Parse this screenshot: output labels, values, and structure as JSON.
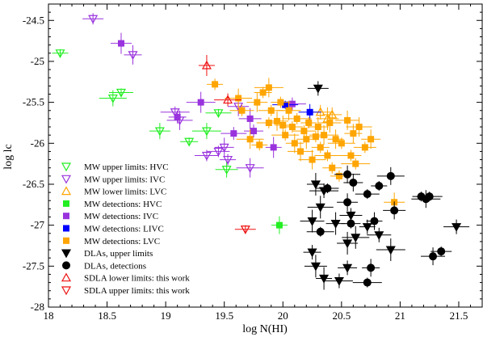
{
  "chart_data": {
    "type": "scatter",
    "xlabel": "log N(HI)",
    "ylabel": "log lc",
    "xlim": [
      18,
      21.7
    ],
    "ylim": [
      -28,
      -24.3
    ],
    "x_ticks": [
      "18",
      "18.5",
      "19",
      "19.5",
      "20",
      "20.5",
      "21",
      "21.5"
    ],
    "y_ticks": [
      "-24.5",
      "-25",
      "-25.5",
      "-26",
      "-26.5",
      "-27",
      "-27.5",
      "-28"
    ],
    "grid": false,
    "legend_position": "bottom-left",
    "series": [
      {
        "name": "MW upper limits: HVC",
        "marker": "triangle-down-open",
        "color": "#22ee22",
        "points": [
          [
            18.1,
            -24.9
          ],
          [
            18.55,
            -25.45
          ],
          [
            18.62,
            -25.38
          ],
          [
            18.95,
            -25.85
          ],
          [
            19.2,
            -25.98
          ],
          [
            19.35,
            -25.85
          ],
          [
            19.45,
            -25.63
          ],
          [
            19.52,
            -26.32
          ]
        ]
      },
      {
        "name": "MW upper limits: IVC",
        "marker": "triangle-down-open",
        "color": "#9933dd",
        "points": [
          [
            18.38,
            -24.48
          ],
          [
            18.72,
            -24.92
          ],
          [
            19.08,
            -25.62
          ],
          [
            19.12,
            -25.72
          ],
          [
            19.45,
            -26.1
          ],
          [
            19.5,
            -26.05
          ],
          [
            19.53,
            -26.2
          ],
          [
            19.72,
            -26.3
          ],
          [
            19.35,
            -26.15
          ],
          [
            19.62,
            -25.55
          ]
        ]
      },
      {
        "name": "MW lower limits: LVC",
        "marker": "triangle-up-open",
        "color": "#ffa500",
        "points": [
          [
            20.32,
            -25.62
          ],
          [
            20.38,
            -25.7
          ],
          [
            20.42,
            -25.65
          ]
        ]
      },
      {
        "name": "MW detections: HVC",
        "marker": "square",
        "color": "#22ee22",
        "points": [
          [
            19.97,
            -27.0
          ]
        ]
      },
      {
        "name": "MW detections: IVC",
        "marker": "square",
        "color": "#9933dd",
        "points": [
          [
            18.62,
            -24.78
          ],
          [
            19.1,
            -25.68
          ],
          [
            19.3,
            -25.5
          ],
          [
            19.58,
            -25.88
          ],
          [
            19.72,
            -25.7
          ],
          [
            19.75,
            -25.85
          ],
          [
            19.92,
            -26.05
          ],
          [
            20.08,
            -25.52
          ]
        ]
      },
      {
        "name": "MW detections: LIVC",
        "marker": "square",
        "color": "#0000ff",
        "points": [
          [
            20.02,
            -25.53
          ],
          [
            20.23,
            -25.62
          ]
        ]
      },
      {
        "name": "MW detections: LVC",
        "marker": "square",
        "color": "#ffa500",
        "points": [
          [
            19.42,
            -25.28
          ],
          [
            19.62,
            -25.45
          ],
          [
            19.65,
            -25.6
          ],
          [
            19.78,
            -25.5
          ],
          [
            19.83,
            -25.38
          ],
          [
            19.88,
            -25.32
          ],
          [
            19.9,
            -25.6
          ],
          [
            19.95,
            -25.73
          ],
          [
            19.98,
            -25.5
          ],
          [
            20.0,
            -25.78
          ],
          [
            20.02,
            -25.9
          ],
          [
            20.05,
            -25.6
          ],
          [
            20.08,
            -25.8
          ],
          [
            20.1,
            -26.0
          ],
          [
            20.12,
            -25.7
          ],
          [
            20.15,
            -26.1
          ],
          [
            20.18,
            -25.85
          ],
          [
            20.2,
            -25.95
          ],
          [
            20.22,
            -25.75
          ],
          [
            20.25,
            -26.2
          ],
          [
            20.28,
            -25.92
          ],
          [
            20.3,
            -25.8
          ],
          [
            20.32,
            -26.05
          ],
          [
            20.35,
            -25.9
          ],
          [
            20.38,
            -26.15
          ],
          [
            20.4,
            -25.75
          ],
          [
            20.42,
            -26.3
          ],
          [
            20.45,
            -25.95
          ],
          [
            20.5,
            -26.0
          ],
          [
            20.55,
            -25.72
          ],
          [
            20.58,
            -26.15
          ],
          [
            20.6,
            -25.88
          ],
          [
            20.62,
            -26.25
          ],
          [
            20.65,
            -25.8
          ],
          [
            20.7,
            -26.05
          ],
          [
            20.75,
            -25.95
          ],
          [
            19.8,
            -26.02
          ],
          [
            19.72,
            -25.95
          ],
          [
            19.88,
            -25.75
          ],
          [
            20.95,
            -26.72
          ],
          [
            20.48,
            -26.4
          ]
        ]
      },
      {
        "name": "DLAs, upper limits",
        "marker": "triangle-down-filled",
        "color": "#000000",
        "points": [
          [
            20.3,
            -25.33
          ],
          [
            20.28,
            -26.5
          ],
          [
            20.35,
            -26.58
          ],
          [
            20.32,
            -26.78
          ],
          [
            20.58,
            -26.88
          ],
          [
            20.45,
            -26.98
          ],
          [
            20.72,
            -27.02
          ],
          [
            20.62,
            -27.15
          ],
          [
            20.82,
            -27.12
          ],
          [
            20.55,
            -27.22
          ],
          [
            20.25,
            -27.33
          ],
          [
            20.92,
            -27.3
          ],
          [
            21.48,
            -27.02
          ],
          [
            20.28,
            -27.5
          ],
          [
            20.55,
            -27.52
          ],
          [
            20.35,
            -27.65
          ],
          [
            20.48,
            -27.68
          ],
          [
            20.25,
            -26.95
          ]
        ]
      },
      {
        "name": "DLAs, detections",
        "marker": "circle-filled",
        "color": "#000000",
        "points": [
          [
            20.55,
            -26.38
          ],
          [
            20.38,
            -26.55
          ],
          [
            20.6,
            -26.48
          ],
          [
            20.82,
            -26.52
          ],
          [
            20.92,
            -26.4
          ],
          [
            20.72,
            -26.62
          ],
          [
            20.55,
            -26.72
          ],
          [
            21.18,
            -26.65
          ],
          [
            21.22,
            -26.68
          ],
          [
            21.25,
            -26.65
          ],
          [
            20.95,
            -26.82
          ],
          [
            20.58,
            -26.98
          ],
          [
            20.78,
            -26.95
          ],
          [
            20.32,
            -27.08
          ],
          [
            21.28,
            -27.38
          ],
          [
            21.35,
            -27.32
          ],
          [
            20.75,
            -27.52
          ],
          [
            20.72,
            -27.7
          ]
        ]
      },
      {
        "name": "SDLA lower limits: this work",
        "marker": "triangle-up-open",
        "color": "#ee1111",
        "points": [
          [
            19.35,
            -25.05
          ],
          [
            19.53,
            -25.47
          ]
        ]
      },
      {
        "name": "SDLA upper limits: this work",
        "marker": "triangle-down-open",
        "color": "#ee1111",
        "points": [
          [
            19.68,
            -27.05
          ]
        ]
      }
    ]
  }
}
